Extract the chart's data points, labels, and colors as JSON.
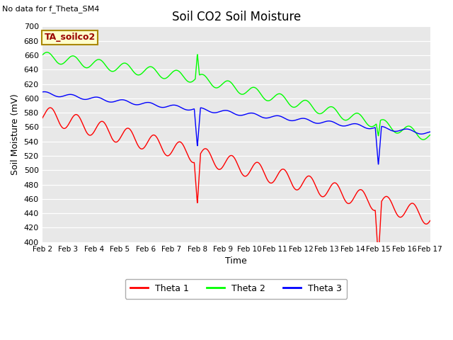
{
  "title": "Soil CO2 Soil Moisture",
  "no_data_text": "No data for f_Theta_SM4",
  "annotation_text": "TA_soilco2",
  "xlabel": "Time",
  "ylabel": "Soil Moisture (mV)",
  "ylim": [
    400,
    700
  ],
  "yticks": [
    400,
    420,
    440,
    460,
    480,
    500,
    520,
    540,
    560,
    580,
    600,
    620,
    640,
    660,
    680,
    700
  ],
  "x_labels": [
    "Feb 2",
    "Feb 3",
    "Feb 4",
    "Feb 5",
    "Feb 6",
    "Feb 7",
    "Feb 8",
    "Feb 9",
    "Feb 10",
    "Feb 11",
    "Feb 12",
    "Feb 13",
    "Feb 14",
    "Feb 15",
    "Feb 16",
    "Feb 17"
  ],
  "colors": {
    "theta1": "#ff0000",
    "theta2": "#00ff00",
    "theta3": "#0000ff",
    "background": "#e8e8e8",
    "annotation_bg": "#ffffcc",
    "annotation_border": "#aa8800",
    "annotation_text": "#990000"
  },
  "legend": [
    {
      "label": "Theta 1",
      "color": "#ff0000"
    },
    {
      "label": "Theta 2",
      "color": "#00ff00"
    },
    {
      "label": "Theta 3",
      "color": "#0000ff"
    }
  ]
}
